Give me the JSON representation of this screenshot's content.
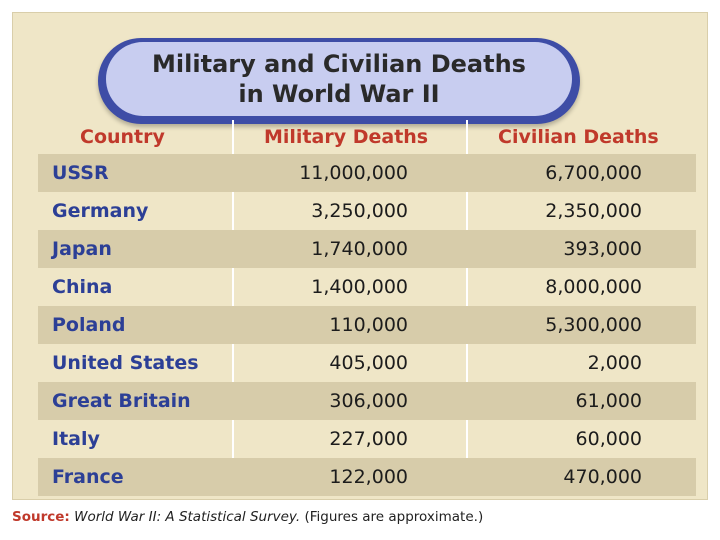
{
  "chart_data": {
    "type": "table",
    "title_line1": "Military and Civilian Deaths",
    "title_line2": "in World War II",
    "columns": [
      "Country",
      "Military Deaths",
      "Civilian Deaths"
    ],
    "rows": [
      {
        "country": "USSR",
        "military": "11,000,000",
        "civilian": "6,700,000"
      },
      {
        "country": "Germany",
        "military": "3,250,000",
        "civilian": "2,350,000"
      },
      {
        "country": "Japan",
        "military": "1,740,000",
        "civilian": "393,000"
      },
      {
        "country": "China",
        "military": "1,400,000",
        "civilian": "8,000,000"
      },
      {
        "country": "Poland",
        "military": "110,000",
        "civilian": "5,300,000"
      },
      {
        "country": "United States",
        "military": "405,000",
        "civilian": "2,000"
      },
      {
        "country": "Great Britain",
        "military": "306,000",
        "civilian": "61,000"
      },
      {
        "country": "Italy",
        "military": "227,000",
        "civilian": "60,000"
      },
      {
        "country": "France",
        "military": "122,000",
        "civilian": "470,000"
      }
    ]
  },
  "source": {
    "label": "Source:",
    "title": "World War II: A Statistical Survey.",
    "note": "(Figures are approximate.)"
  },
  "colors": {
    "panel": "#efe6c7",
    "row_shade": "#d7ccaa",
    "header_text": "#c0392b",
    "country_text": "#2c3f96",
    "title_pill": "#3e4da6"
  }
}
